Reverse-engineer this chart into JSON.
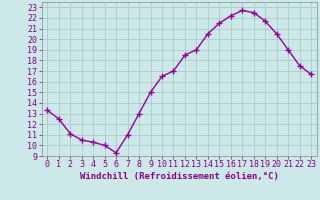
{
  "x": [
    0,
    1,
    2,
    3,
    4,
    5,
    6,
    7,
    8,
    9,
    10,
    11,
    12,
    13,
    14,
    15,
    16,
    17,
    18,
    19,
    20,
    21,
    22,
    23
  ],
  "y": [
    13.3,
    12.5,
    11.1,
    10.5,
    10.3,
    10.0,
    9.3,
    11.0,
    13.0,
    15.0,
    16.5,
    17.0,
    18.5,
    19.0,
    20.5,
    21.5,
    22.2,
    22.7,
    22.5,
    21.7,
    20.5,
    19.0,
    17.5,
    16.7
  ],
  "line_color": "#990099",
  "marker": "+",
  "markersize": 4,
  "linewidth": 1.0,
  "xlabel": "Windchill (Refroidissement éolien,°C)",
  "xlim": [
    -0.5,
    23.5
  ],
  "ylim": [
    9,
    23.5
  ],
  "xtick_labels": [
    "0",
    "1",
    "2",
    "3",
    "4",
    "5",
    "6",
    "7",
    "8",
    "9",
    "10",
    "11",
    "12",
    "13",
    "14",
    "15",
    "16",
    "17",
    "18",
    "19",
    "20",
    "21",
    "22",
    "23"
  ],
  "ytick_values": [
    9,
    10,
    11,
    12,
    13,
    14,
    15,
    16,
    17,
    18,
    19,
    20,
    21,
    22,
    23
  ],
  "bg_color": "#cce8e8",
  "grid_color": "#aacccc",
  "tick_color": "#880088",
  "label_color": "#880088",
  "xlabel_fontsize": 6.5,
  "tick_fontsize": 6.0
}
